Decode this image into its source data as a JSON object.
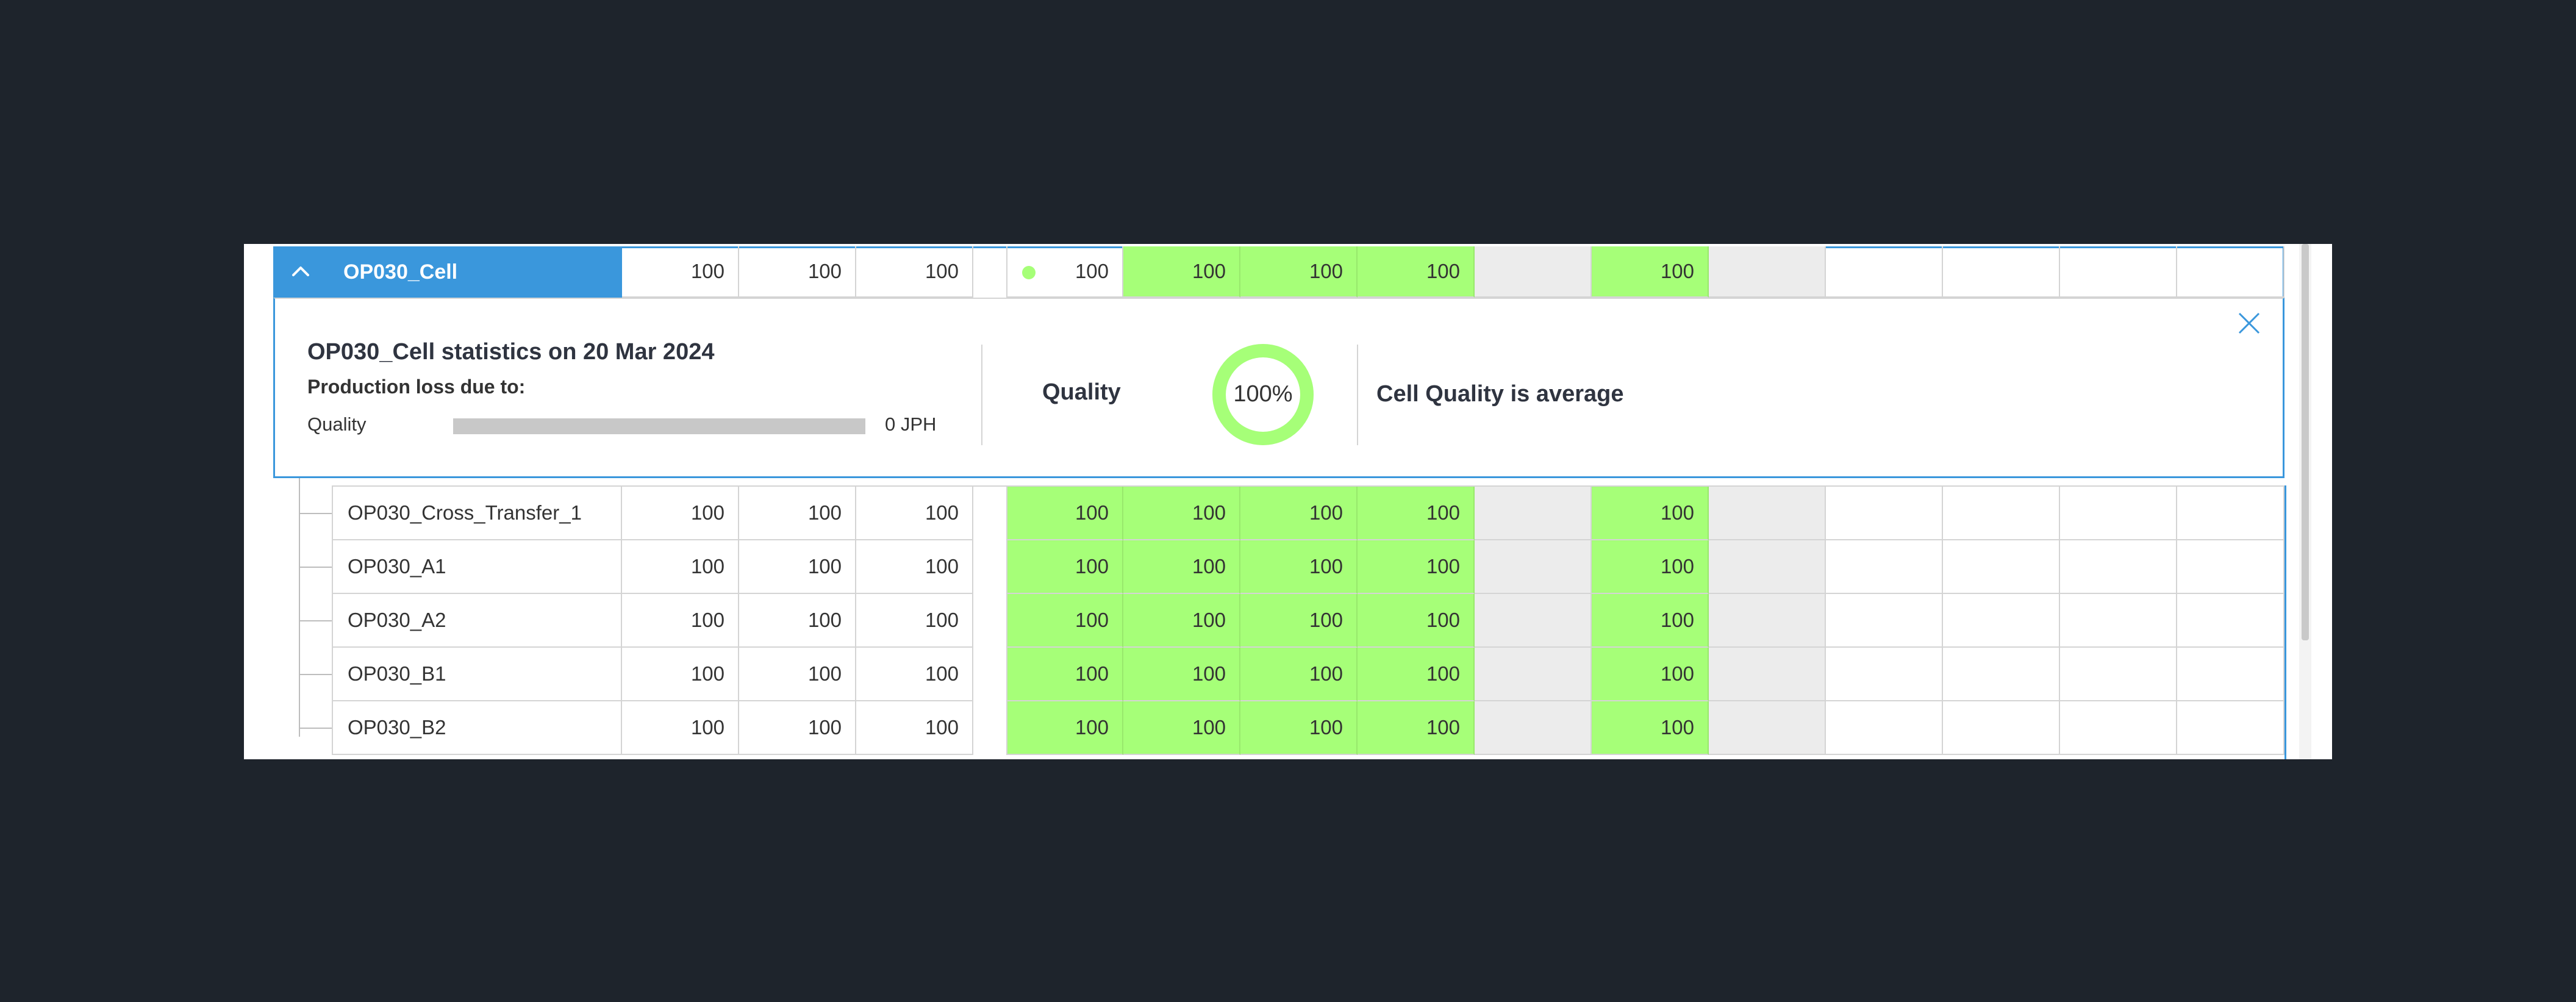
{
  "cell": {
    "name": "OP030_Cell",
    "values": [
      "100",
      "100",
      "100"
    ],
    "status_values": [
      "100",
      "100",
      "100",
      "100",
      "",
      "100",
      "",
      "",
      "",
      "",
      ""
    ]
  },
  "stats": {
    "title": "OP030_Cell statistics on 20 Mar 2024",
    "subtitle": "Production loss due to:",
    "loss_label": "Quality",
    "loss_value": "0 JPH",
    "loss_fraction": 0,
    "quality_label": "Quality",
    "quality_percent_text": "100%",
    "quality_fraction": 1.0,
    "verdict": "Cell Quality is average"
  },
  "children": [
    {
      "name": "OP030_Cross_Transfer_1",
      "values": [
        "100",
        "100",
        "100"
      ],
      "status_values": [
        "100",
        "100",
        "100",
        "100",
        "",
        "100",
        "",
        "",
        "",
        "",
        ""
      ]
    },
    {
      "name": "OP030_A1",
      "values": [
        "100",
        "100",
        "100"
      ],
      "status_values": [
        "100",
        "100",
        "100",
        "100",
        "",
        "100",
        "",
        "",
        "",
        "",
        ""
      ]
    },
    {
      "name": "OP030_A2",
      "values": [
        "100",
        "100",
        "100"
      ],
      "status_values": [
        "100",
        "100",
        "100",
        "100",
        "",
        "100",
        "",
        "",
        "",
        "",
        ""
      ]
    },
    {
      "name": "OP030_B1",
      "values": [
        "100",
        "100",
        "100"
      ],
      "status_values": [
        "100",
        "100",
        "100",
        "100",
        "",
        "100",
        "",
        "",
        "",
        "",
        ""
      ]
    },
    {
      "name": "OP030_B2",
      "values": [
        "100",
        "100",
        "100"
      ],
      "status_values": [
        "100",
        "100",
        "100",
        "100",
        "",
        "100",
        "",
        "",
        "",
        "",
        ""
      ]
    }
  ],
  "colors": {
    "accent": "#3a97dc",
    "ok_green": "#a6ff78",
    "empty_grey": "#ececec",
    "background": "#1e242c"
  },
  "icons": {
    "collapse": "chevron-up-icon",
    "close": "close-icon",
    "status": "status-dot-icon"
  }
}
